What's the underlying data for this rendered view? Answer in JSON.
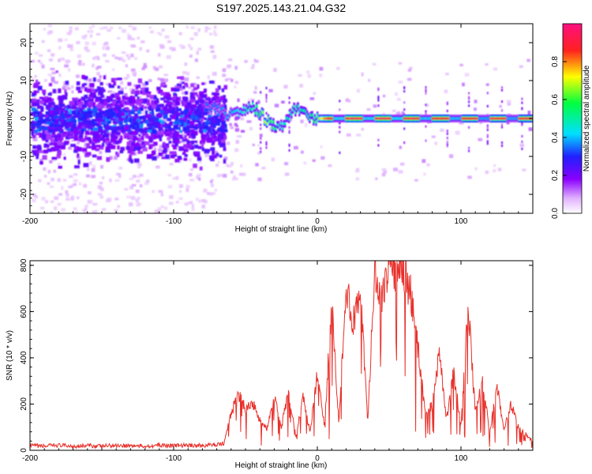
{
  "title": "S197.2025.143.21.04.G32",
  "chart_data": [
    {
      "type": "heatmap",
      "title": "S197.2025.143.21.04.G32",
      "xlabel": "Height of straight line (km)",
      "ylabel": "Frequency (Hz)",
      "xlim": [
        -200,
        150
      ],
      "ylim": [
        -25,
        25
      ],
      "xticks": [
        -200,
        -100,
        0,
        100
      ],
      "yticks": [
        -20,
        -10,
        0,
        10,
        20
      ],
      "colorbar": {
        "label": "Normalized spectral amplitude",
        "range": [
          0,
          1
        ],
        "ticks": [
          "0.0",
          "0.2",
          "0.4",
          "0.6",
          "0.8"
        ],
        "colormap": "rainbow (white-violet-blue-cyan-green-yellow-red-magenta)"
      },
      "ridge": {
        "description": "narrow-band signal near 0 Hz",
        "points": [
          {
            "x": -75,
            "freq": 3,
            "amp": 0.35
          },
          {
            "x": -60,
            "freq": 1,
            "amp": 0.4
          },
          {
            "x": -45,
            "freq": 3,
            "amp": 0.5
          },
          {
            "x": -37,
            "freq": 0,
            "amp": 0.7
          },
          {
            "x": -27,
            "freq": -3,
            "amp": 0.45
          },
          {
            "x": -15,
            "freq": 3,
            "amp": 0.5
          },
          {
            "x": -5,
            "freq": 0,
            "amp": 0.5
          },
          {
            "x": 10,
            "freq": 0,
            "amp": 0.95
          },
          {
            "x": 30,
            "freq": 0,
            "amp": 0.95
          },
          {
            "x": 50,
            "freq": 0,
            "amp": 0.95
          },
          {
            "x": 70,
            "freq": 0,
            "amp": 0.9
          },
          {
            "x": 90,
            "freq": 0,
            "amp": 0.9
          },
          {
            "x": 110,
            "freq": 0,
            "amp": 0.85
          },
          {
            "x": 140,
            "freq": 0,
            "amp": 0.85
          }
        ]
      }
    },
    {
      "type": "line",
      "xlabel": "Height of straight line (km)",
      "ylabel": "SNR (10 * v/v)",
      "xlim": [
        -200,
        150
      ],
      "ylim": [
        0,
        820
      ],
      "xticks": [
        -200,
        -100,
        0,
        100
      ],
      "yticks": [
        0,
        200,
        400,
        600,
        800
      ],
      "color": "#e8302a",
      "x": [
        -200,
        -190,
        -180,
        -170,
        -160,
        -150,
        -140,
        -130,
        -120,
        -110,
        -100,
        -90,
        -80,
        -70,
        -65,
        -60,
        -55,
        -50,
        -45,
        -40,
        -35,
        -30,
        -25,
        -20,
        -15,
        -10,
        -5,
        0,
        5,
        10,
        15,
        20,
        25,
        30,
        35,
        40,
        45,
        50,
        55,
        60,
        65,
        70,
        75,
        80,
        85,
        90,
        95,
        100,
        105,
        110,
        115,
        120,
        125,
        130,
        135,
        140,
        145,
        150
      ],
      "values": [
        20,
        18,
        22,
        18,
        20,
        18,
        22,
        20,
        18,
        22,
        20,
        22,
        20,
        25,
        30,
        160,
        240,
        180,
        210,
        130,
        90,
        230,
        100,
        250,
        60,
        230,
        80,
        330,
        100,
        640,
        120,
        700,
        560,
        700,
        130,
        760,
        680,
        800,
        780,
        780,
        680,
        440,
        170,
        190,
        420,
        130,
        340,
        100,
        620,
        160,
        300,
        80,
        280,
        90,
        200,
        100,
        70,
        40
      ]
    }
  ]
}
